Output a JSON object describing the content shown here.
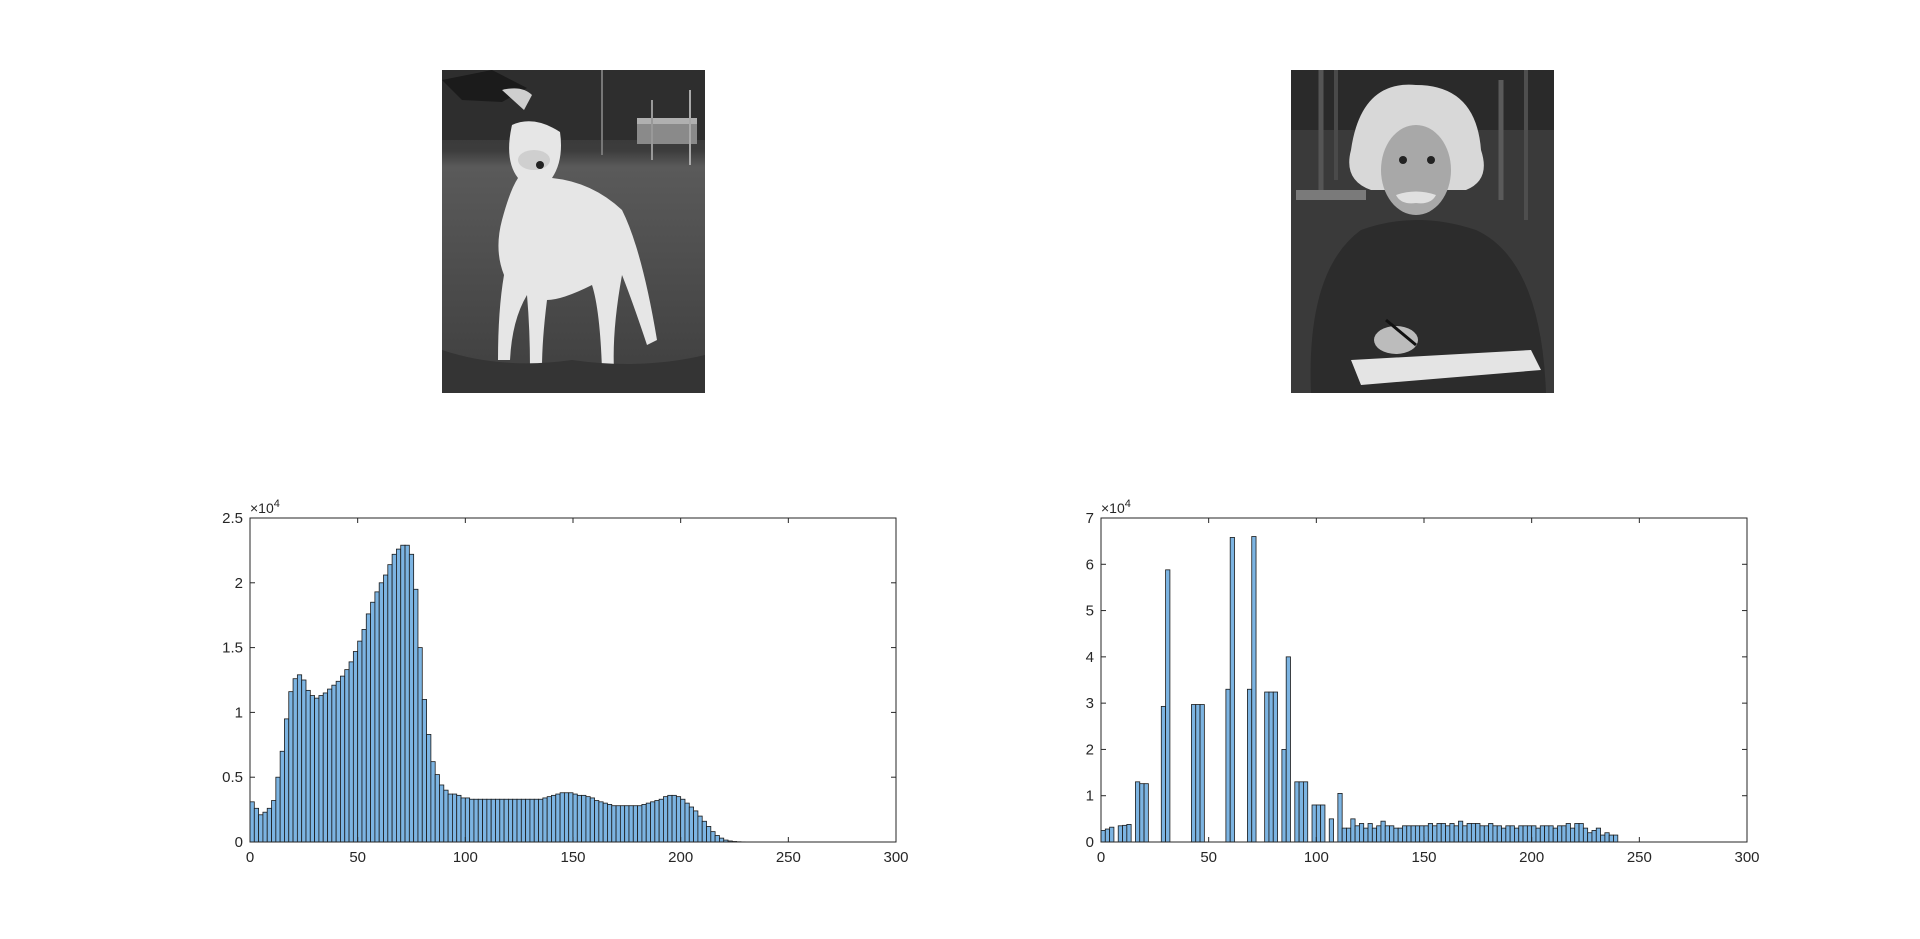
{
  "images": {
    "left": {
      "subject": "grayscale photo of a white dog standing on grass"
    },
    "right": {
      "subject": "grayscale photo of Albert Einstein writing on a notepad"
    }
  },
  "chart_data": [
    {
      "type": "bar",
      "title": "",
      "xlabel": "",
      "ylabel": "",
      "xlim": [
        0,
        300
      ],
      "ylim": [
        0,
        25000
      ],
      "xticks": [
        "0",
        "50",
        "100",
        "150",
        "200",
        "250",
        "300"
      ],
      "yticks": [
        "0",
        "0.5",
        "1",
        "1.5",
        "2",
        "2.5"
      ],
      "exponent_label": "×10",
      "exponent_power": "4",
      "bin_width": 2,
      "bar_color": "#7cb4e2",
      "edge_color": "#1a1a1a",
      "x": [
        0,
        2,
        4,
        6,
        8,
        10,
        12,
        14,
        16,
        18,
        20,
        22,
        24,
        26,
        28,
        30,
        32,
        34,
        36,
        38,
        40,
        42,
        44,
        46,
        48,
        50,
        52,
        54,
        56,
        58,
        60,
        62,
        64,
        66,
        68,
        70,
        72,
        74,
        76,
        78,
        80,
        82,
        84,
        86,
        88,
        90,
        92,
        94,
        96,
        98,
        100,
        102,
        104,
        106,
        108,
        110,
        112,
        114,
        116,
        118,
        120,
        122,
        124,
        126,
        128,
        130,
        132,
        134,
        136,
        138,
        140,
        142,
        144,
        146,
        148,
        150,
        152,
        154,
        156,
        158,
        160,
        162,
        164,
        166,
        168,
        170,
        172,
        174,
        176,
        178,
        180,
        182,
        184,
        186,
        188,
        190,
        192,
        194,
        196,
        198,
        200,
        202,
        204,
        206,
        208,
        210,
        212,
        214,
        216,
        218,
        220,
        222,
        224,
        226,
        228,
        230,
        232,
        234,
        236,
        238
      ],
      "values": [
        3100,
        2600,
        2100,
        2300,
        2600,
        3200,
        5000,
        7000,
        9500,
        11600,
        12600,
        12900,
        12500,
        11700,
        11300,
        11100,
        11300,
        11500,
        11800,
        12100,
        12400,
        12800,
        13300,
        13900,
        14700,
        15500,
        16400,
        17600,
        18500,
        19300,
        20000,
        20600,
        21400,
        22200,
        22600,
        22900,
        22900,
        22200,
        19500,
        15000,
        11000,
        8300,
        6200,
        5200,
        4400,
        4000,
        3700,
        3700,
        3600,
        3400,
        3400,
        3300,
        3300,
        3300,
        3300,
        3300,
        3300,
        3300,
        3300,
        3300,
        3300,
        3300,
        3300,
        3300,
        3300,
        3300,
        3300,
        3300,
        3400,
        3500,
        3600,
        3700,
        3800,
        3800,
        3800,
        3700,
        3600,
        3600,
        3500,
        3400,
        3200,
        3100,
        3000,
        2900,
        2800,
        2800,
        2800,
        2800,
        2800,
        2800,
        2800,
        2900,
        3000,
        3100,
        3200,
        3300,
        3500,
        3600,
        3600,
        3500,
        3300,
        3000,
        2700,
        2400,
        2000,
        1600,
        1200,
        800,
        500,
        300,
        150,
        80,
        40,
        20,
        10,
        0,
        0,
        0,
        0,
        0
      ]
    },
    {
      "type": "bar",
      "title": "",
      "xlabel": "",
      "ylabel": "",
      "xlim": [
        0,
        300
      ],
      "ylim": [
        0,
        70000
      ],
      "xticks": [
        "0",
        "50",
        "100",
        "150",
        "200",
        "250",
        "300"
      ],
      "yticks": [
        "0",
        "1",
        "2",
        "3",
        "4",
        "5",
        "6",
        "7"
      ],
      "exponent_label": "×10",
      "exponent_power": "4",
      "bin_width": 2,
      "bar_color": "#7cb4e2",
      "edge_color": "#1a1a1a",
      "x": [
        0,
        2,
        4,
        6,
        8,
        10,
        12,
        14,
        16,
        18,
        20,
        22,
        24,
        26,
        28,
        30,
        32,
        34,
        36,
        38,
        40,
        42,
        44,
        46,
        48,
        50,
        52,
        54,
        56,
        58,
        60,
        62,
        64,
        66,
        68,
        70,
        72,
        74,
        76,
        78,
        80,
        82,
        84,
        86,
        88,
        90,
        92,
        94,
        96,
        98,
        100,
        102,
        104,
        106,
        108,
        110,
        112,
        114,
        116,
        118,
        120,
        122,
        124,
        126,
        128,
        130,
        132,
        134,
        136,
        138,
        140,
        142,
        144,
        146,
        148,
        150,
        152,
        154,
        156,
        158,
        160,
        162,
        164,
        166,
        168,
        170,
        172,
        174,
        176,
        178,
        180,
        182,
        184,
        186,
        188,
        190,
        192,
        194,
        196,
        198,
        200,
        202,
        204,
        206,
        208,
        210,
        212,
        214,
        216,
        218,
        220,
        222,
        224,
        226,
        228,
        230,
        232,
        234,
        236,
        238
      ],
      "values": [
        2500,
        2800,
        3200,
        0,
        3500,
        3600,
        3800,
        0,
        13000,
        12600,
        12600,
        0,
        0,
        0,
        29300,
        58800,
        0,
        0,
        0,
        0,
        0,
        29700,
        29700,
        29700,
        0,
        0,
        0,
        0,
        0,
        33000,
        65800,
        0,
        0,
        0,
        33000,
        66000,
        0,
        0,
        32400,
        32400,
        32400,
        0,
        20000,
        40000,
        0,
        13000,
        13000,
        13000,
        0,
        8000,
        8000,
        8000,
        0,
        5000,
        0,
        10500,
        3000,
        3000,
        5000,
        3500,
        4000,
        3000,
        4000,
        3000,
        3500,
        4500,
        3500,
        3500,
        3000,
        3000,
        3500,
        3500,
        3500,
        3500,
        3500,
        3500,
        4000,
        3500,
        4000,
        4000,
        3500,
        4000,
        3500,
        4500,
        3500,
        4000,
        4000,
        4000,
        3500,
        3500,
        4000,
        3500,
        3500,
        3000,
        3500,
        3500,
        3000,
        3500,
        3500,
        3500,
        3500,
        3000,
        3500,
        3500,
        3500,
        3000,
        3500,
        3500,
        4000,
        3000,
        4000,
        4000,
        3000,
        2000,
        2500,
        3000,
        1500,
        2000,
        1500,
        1500
      ]
    }
  ]
}
